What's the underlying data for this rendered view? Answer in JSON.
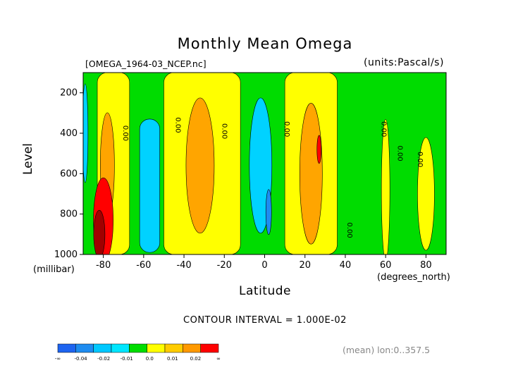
{
  "chart_data": {
    "type": "contour",
    "title": "Monthly Mean Omega",
    "file_label": "[OMEGA_1964-03_NCEP.nc]",
    "units_label": "(units:Pascal/s)",
    "xlabel": "Latitude",
    "xunits": "(degrees_north)",
    "ylabel": "Level",
    "yunits": "(millibar)",
    "xlim": [
      -90,
      90
    ],
    "ylim": [
      1000,
      100
    ],
    "y_inverted": true,
    "x_ticks": [
      "-80",
      "-60",
      "-40",
      "-20",
      "0",
      "20",
      "40",
      "60",
      "80"
    ],
    "y_ticks": [
      "200",
      "400",
      "600",
      "800",
      "1000"
    ],
    "contour_interval_text": "CONTOUR INTERVAL = 1.000E-02",
    "footer_text": "(mean) lon:0..357.5",
    "contour_labels": [
      {
        "text": "0.00",
        "lat": -70,
        "level": 400
      },
      {
        "text": "0.00",
        "lat": -44,
        "level": 360
      },
      {
        "text": "0.00",
        "lat": -21,
        "level": 390
      },
      {
        "text": "0.00",
        "lat": 10,
        "level": 380
      },
      {
        "text": "0.00",
        "lat": 58,
        "level": 380
      },
      {
        "text": "0.00",
        "lat": 66,
        "level": 500
      },
      {
        "text": "0.00",
        "lat": 76,
        "level": 530
      },
      {
        "text": "0.00",
        "lat": 41,
        "level": 880
      }
    ],
    "colorbar": {
      "labels": [
        "-∞",
        "-0.04",
        "-0.02",
        "-0.01",
        "0.0",
        "0.01",
        "0.02",
        "∞"
      ],
      "colors": [
        "#1e64f0",
        "#1e8cf0",
        "#00c8ff",
        "#00e6ff",
        "#00dd00",
        "#ffff00",
        "#ffcc00",
        "#ff9900",
        "#ff0000"
      ]
    },
    "field_colors": {
      "c_neg3": "#1e8cf0",
      "c_neg2": "#00d2ff",
      "c_neg1": "#00dc00",
      "c_pos1": "#ffff00",
      "c_pos2": "#ffa500",
      "c_pos3": "#ff0000",
      "c_pos4": "#a00000"
    }
  }
}
